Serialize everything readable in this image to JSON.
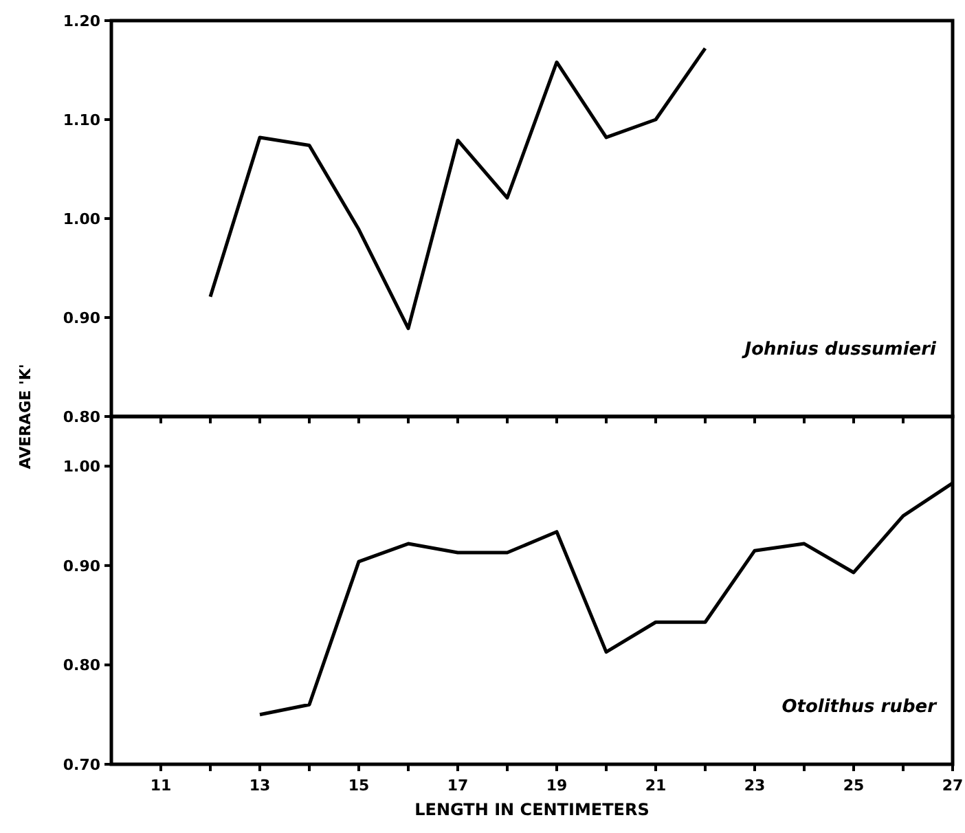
{
  "chart_data": [
    {
      "type": "line",
      "ylabel": "AVERAGE 'K'",
      "x": [
        12,
        13,
        14,
        15,
        16,
        17,
        18,
        19,
        20,
        21,
        22
      ],
      "series": [
        {
          "color": "#000000",
          "values": [
            0.921,
            1.082,
            1.074,
            0.989,
            0.889,
            1.079,
            1.021,
            1.158,
            1.082,
            1.1,
            1.172
          ]
        }
      ],
      "xlim": [
        10,
        27
      ],
      "xticks": [
        {
          "value": 11,
          "label": null
        },
        {
          "value": 12,
          "label": null
        },
        {
          "value": 13,
          "label": null
        },
        {
          "value": 14,
          "label": null
        },
        {
          "value": 15,
          "label": null
        },
        {
          "value": 16,
          "label": null
        },
        {
          "value": 17,
          "label": null
        },
        {
          "value": 18,
          "label": null
        },
        {
          "value": 19,
          "label": null
        },
        {
          "value": 20,
          "label": null
        },
        {
          "value": 21,
          "label": null
        },
        {
          "value": 22,
          "label": null
        },
        {
          "value": 23,
          "label": null
        },
        {
          "value": 24,
          "label": null
        },
        {
          "value": 25,
          "label": null
        },
        {
          "value": 26,
          "label": null
        },
        {
          "value": 27,
          "label": null
        }
      ],
      "ylim": [
        0.8,
        1.2
      ],
      "yticks": [
        {
          "value": 0.8,
          "label": "0.80"
        },
        {
          "value": 0.9,
          "label": "0.90"
        },
        {
          "value": 1.0,
          "label": "1.00"
        },
        {
          "value": 1.1,
          "label": "1.10"
        },
        {
          "value": 1.2,
          "label": "1.20"
        }
      ],
      "tick_labels": "y",
      "grid": false,
      "marker": "none",
      "line_style": "solid",
      "annotations": [
        "Johnius dussumieri"
      ]
    },
    {
      "type": "line",
      "xlabel": "LENGTH IN CENTIMETERS",
      "x": [
        13,
        14,
        15,
        16,
        17,
        18,
        19,
        20,
        21,
        22,
        23,
        24,
        25,
        26,
        27
      ],
      "series": [
        {
          "color": "#000000",
          "values": [
            0.75,
            0.76,
            0.904,
            0.922,
            0.913,
            0.913,
            0.934,
            0.813,
            0.843,
            0.843,
            0.915,
            0.922,
            0.893,
            0.95,
            0.983
          ]
        }
      ],
      "xlim": [
        10,
        27
      ],
      "xticks": [
        {
          "value": 11,
          "label": "11"
        },
        {
          "value": 12,
          "label": null
        },
        {
          "value": 13,
          "label": "13"
        },
        {
          "value": 14,
          "label": null
        },
        {
          "value": 15,
          "label": "15"
        },
        {
          "value": 16,
          "label": null
        },
        {
          "value": 17,
          "label": "17"
        },
        {
          "value": 18,
          "label": null
        },
        {
          "value": 19,
          "label": "19"
        },
        {
          "value": 20,
          "label": null
        },
        {
          "value": 21,
          "label": "21"
        },
        {
          "value": 22,
          "label": null
        },
        {
          "value": 23,
          "label": "23"
        },
        {
          "value": 24,
          "label": null
        },
        {
          "value": 25,
          "label": "25"
        },
        {
          "value": 26,
          "label": null
        },
        {
          "value": 27,
          "label": "27"
        }
      ],
      "ylim": [
        0.7,
        1.05
      ],
      "yticks": [
        {
          "value": 0.7,
          "label": "0.70"
        },
        {
          "value": 0.8,
          "label": "0.80"
        },
        {
          "value": 0.9,
          "label": "0.90"
        },
        {
          "value": 1.0,
          "label": "1.00"
        }
      ],
      "grid": false,
      "marker": "none",
      "line_style": "solid",
      "annotations": [
        "Otolithus ruber"
      ]
    }
  ]
}
